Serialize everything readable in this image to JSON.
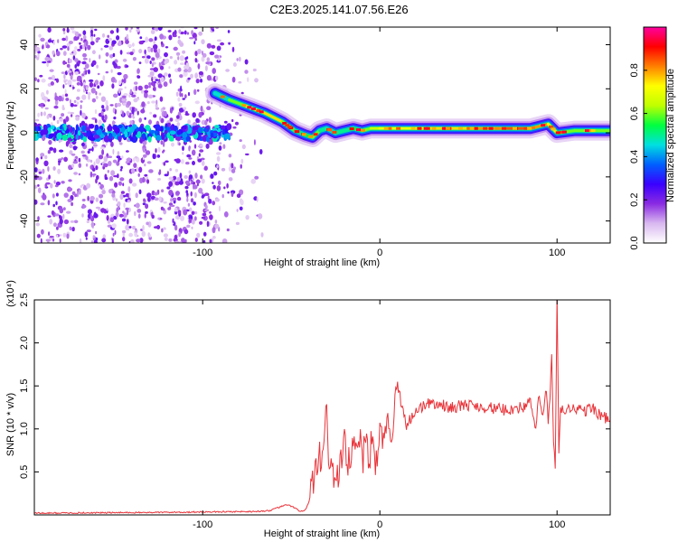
{
  "figure": {
    "title": "C2E3.2025.141.07.56.E26"
  },
  "chart_data": [
    {
      "type": "heatmap",
      "xlabel": "Height of straight line (km)",
      "ylabel": "Frequency (Hz)",
      "xlim": [
        -195,
        130
      ],
      "ylim": [
        -50,
        48
      ],
      "x_ticks": [
        -100,
        0,
        100
      ],
      "y_ticks": [
        -40,
        -20,
        0,
        20,
        40
      ],
      "colorbar": {
        "label": "Normalized spectral amplitude",
        "range": [
          0,
          1
        ],
        "ticks": [
          0.0,
          0.2,
          0.4,
          0.6,
          0.8
        ],
        "colors": [
          "#ffffff",
          "#d9b8f0",
          "#8a2be2",
          "#3a00ff",
          "#0060ff",
          "#00e0e0",
          "#00ff40",
          "#c0ff00",
          "#ffff00",
          "#ff8000",
          "#ff0000",
          "#ff00a0"
        ]
      },
      "ridge": {
        "x": [
          -93,
          -85,
          -75,
          -65,
          -55,
          -48,
          -42,
          -38,
          -34,
          -30,
          -25,
          -20,
          -15,
          -10,
          -5,
          0,
          10,
          30,
          50,
          70,
          85,
          95,
          100,
          110,
          130
        ],
        "y": [
          18,
          15,
          12,
          9,
          5,
          1,
          -1,
          -2,
          1,
          2,
          0,
          1,
          2,
          1,
          2,
          2,
          2,
          2,
          2,
          2,
          2,
          4,
          0,
          1,
          1
        ],
        "amplitude": [
          0.45,
          0.6,
          0.7,
          0.75,
          0.6,
          0.5,
          0.55,
          0.6,
          0.5,
          0.45,
          0.5,
          0.5,
          0.55,
          0.6,
          0.65,
          0.7,
          0.7,
          0.75,
          0.8,
          0.85,
          0.8,
          0.7,
          0.6,
          0.6,
          0.6
        ]
      },
      "noise_band": {
        "x_range": [
          -195,
          -65
        ],
        "center_y": 0,
        "amplitude": 0.3
      }
    },
    {
      "type": "line",
      "xlabel": "Height of straight line (km)",
      "ylabel": "SNR (10 * v/v)",
      "y_multiplier": "(x10⁴)",
      "xlim": [
        -195,
        130
      ],
      "ylim": [
        0,
        2.5
      ],
      "x_ticks": [
        -100,
        0,
        100
      ],
      "y_ticks": [
        0.5,
        1.0,
        1.5,
        2.0,
        2.5
      ],
      "y_tick_labels": [
        "0.5",
        "1.0",
        "1.5",
        "2.0",
        "2.5"
      ],
      "color": "#e8343a",
      "series": [
        {
          "x": [
            -195,
            -120,
            -70,
            -62,
            -58,
            -52,
            -48,
            -45,
            -42,
            -40,
            -38,
            -36,
            -34,
            -32,
            -31,
            -30,
            -29,
            -28,
            -27,
            -26,
            -25,
            -24,
            -22,
            -20,
            -18,
            -16,
            -14,
            -12,
            -10,
            -8,
            -6,
            -4,
            -2,
            0,
            2,
            4,
            6,
            8,
            10,
            15,
            20,
            25,
            30,
            40,
            50,
            60,
            70,
            80,
            85,
            88,
            90,
            92,
            94,
            95,
            96,
            97,
            98,
            99,
            100,
            101,
            102,
            104,
            106,
            110,
            115,
            120,
            125,
            130
          ],
          "y": [
            0.02,
            0.03,
            0.04,
            0.05,
            0.08,
            0.12,
            0.08,
            0.04,
            0.06,
            0.15,
            0.3,
            0.4,
            0.6,
            0.9,
            1.1,
            1.3,
            0.8,
            0.5,
            0.7,
            0.3,
            0.3,
            0.35,
            0.5,
            0.75,
            0.5,
            0.8,
            0.65,
            0.95,
            0.55,
            0.9,
            0.75,
            0.85,
            0.65,
            1.0,
            0.8,
            1.1,
            0.85,
            1.2,
            1.5,
            1.05,
            1.2,
            1.28,
            1.3,
            1.25,
            1.28,
            1.25,
            1.22,
            1.25,
            1.3,
            1.0,
            1.4,
            1.15,
            1.45,
            1.1,
            1.3,
            1.9,
            0.8,
            0.5,
            2.5,
            0.7,
            1.25,
            1.2,
            1.22,
            1.25,
            1.2,
            1.25,
            1.15,
            1.1
          ]
        }
      ]
    }
  ]
}
